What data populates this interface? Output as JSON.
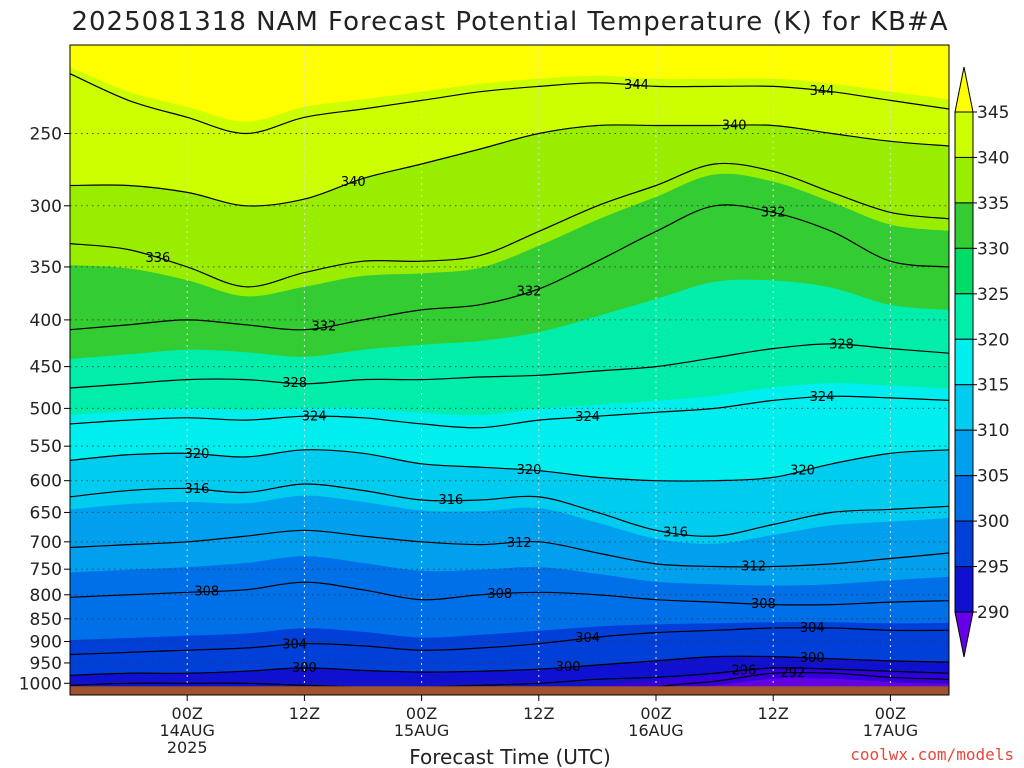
{
  "chart_data": {
    "type": "heatmap",
    "title": "2025081318 NAM Forecast Potential Temperature (K) for KB#A",
    "xlabel": "Forecast Time (UTC)",
    "ylabel": "",
    "y_axis": {
      "scale": "log",
      "reversed": true,
      "units": "hPa",
      "ylim": [
        200,
        1030
      ],
      "ticks": [
        250,
        300,
        350,
        400,
        450,
        500,
        550,
        600,
        650,
        700,
        750,
        800,
        850,
        900,
        950,
        1000
      ]
    },
    "x_axis": {
      "units": "forecast hour",
      "xlim": [
        -6,
        84
      ],
      "ticks": [
        {
          "hour": 6,
          "line1": "00Z",
          "line2": "14AUG",
          "line3": "2025"
        },
        {
          "hour": 18,
          "line1": "12Z",
          "line2": "",
          "line3": ""
        },
        {
          "hour": 30,
          "line1": "00Z",
          "line2": "15AUG",
          "line3": ""
        },
        {
          "hour": 42,
          "line1": "12Z",
          "line2": "",
          "line3": ""
        },
        {
          "hour": 54,
          "line1": "00Z",
          "line2": "16AUG",
          "line3": ""
        },
        {
          "hour": 66,
          "line1": "12Z",
          "line2": "",
          "line3": ""
        },
        {
          "hour": 78,
          "line1": "00Z",
          "line2": "17AUG",
          "line3": ""
        }
      ]
    },
    "grid": true,
    "colorbar": {
      "labels": [
        345,
        340,
        335,
        330,
        325,
        320,
        315,
        310,
        305,
        300,
        295,
        290
      ],
      "colors": [
        "#ffff00",
        "#ccff00",
        "#99ee00",
        "#33cc33",
        "#00dd66",
        "#00eeaa",
        "#00eeee",
        "#00ccf0",
        "#00a0ee",
        "#0070e8",
        "#0040d8",
        "#1010d0",
        "#3300dd",
        "#6600e8"
      ]
    },
    "bands": [
      {
        "theta": "<290",
        "color": "#6600e8"
      },
      {
        "theta": "290-295",
        "color": "#3300dd"
      },
      {
        "theta": "295-300",
        "color": "#1010d0"
      },
      {
        "theta": "300-305",
        "color": "#0040d8"
      },
      {
        "theta": "305-310",
        "color": "#0070e8"
      },
      {
        "theta": "310-315",
        "color": "#00a0ee"
      },
      {
        "theta": "315-320",
        "color": "#00ccf0"
      },
      {
        "theta": "320-325",
        "color": "#00eeee"
      },
      {
        "theta": "325-330",
        "color": "#00eeaa"
      },
      {
        "theta": "330-335",
        "color": "#33cc33"
      },
      {
        "theta": "335-340",
        "color": "#99ee00"
      },
      {
        "theta": "340-345",
        "color": "#ccff00"
      },
      {
        "theta": ">345",
        "color": "#ffff00"
      }
    ],
    "ground_color": "#a0522d",
    "hours": [
      -6,
      0,
      6,
      12,
      18,
      24,
      30,
      36,
      42,
      48,
      54,
      60,
      66,
      72,
      78,
      84
    ],
    "contours": [
      {
        "theta": 292,
        "pressure": [
          null,
          null,
          null,
          null,
          null,
          null,
          null,
          null,
          null,
          null,
          1010,
          995,
          975,
          975,
          985,
          990
        ],
        "label": {
          "hour": 68,
          "text": "292"
        }
      },
      {
        "theta": 296,
        "pressure": [
          1005,
          1000,
          1000,
          1000,
          1005,
          1010,
          1010,
          1005,
          1000,
          990,
          985,
          975,
          962,
          965,
          970,
          975
        ],
        "label": {
          "hour": 63,
          "text": "296"
        }
      },
      {
        "theta": 300,
        "pressure": [
          980,
          975,
          975,
          970,
          962,
          968,
          972,
          970,
          965,
          955,
          945,
          935,
          935,
          940,
          945,
          948
        ],
        "label": {
          "hour": 18,
          "text": "300"
        }
      },
      {
        "theta": 300,
        "pressure": null,
        "label": {
          "hour": 45,
          "text": "300"
        }
      },
      {
        "theta": 300,
        "pressure": null,
        "label": {
          "hour": 70,
          "text": "300"
        }
      },
      {
        "theta": 304,
        "pressure": [
          930,
          925,
          920,
          915,
          905,
          910,
          920,
          915,
          905,
          890,
          880,
          875,
          870,
          870,
          875,
          875
        ],
        "label": {
          "hour": 17,
          "text": "304"
        }
      },
      {
        "theta": 304,
        "pressure": null,
        "label": {
          "hour": 47,
          "text": "304"
        }
      },
      {
        "theta": 304,
        "pressure": null,
        "label": {
          "hour": 70,
          "text": "304"
        }
      },
      {
        "theta": 308,
        "pressure": [
          805,
          800,
          795,
          790,
          775,
          790,
          810,
          800,
          795,
          800,
          810,
          815,
          820,
          820,
          815,
          812
        ],
        "label": {
          "hour": 8,
          "text": "308"
        }
      },
      {
        "theta": 308,
        "pressure": null,
        "label": {
          "hour": 38,
          "text": "308"
        }
      },
      {
        "theta": 308,
        "pressure": null,
        "label": {
          "hour": 65,
          "text": "308"
        }
      },
      {
        "theta": 312,
        "pressure": [
          710,
          705,
          700,
          690,
          680,
          690,
          700,
          705,
          700,
          720,
          740,
          745,
          745,
          740,
          730,
          720
        ],
        "label": {
          "hour": 40,
          "text": "312"
        }
      },
      {
        "theta": 312,
        "pressure": null,
        "label": {
          "hour": 64,
          "text": "312"
        }
      },
      {
        "theta": 316,
        "pressure": [
          625,
          615,
          612,
          618,
          605,
          615,
          630,
          630,
          625,
          650,
          680,
          690,
          670,
          650,
          645,
          640
        ],
        "label": {
          "hour": 7,
          "text": "316"
        }
      },
      {
        "theta": 316,
        "pressure": null,
        "label": {
          "hour": 33,
          "text": "316"
        }
      },
      {
        "theta": 316,
        "pressure": null,
        "label": {
          "hour": 56,
          "text": "316"
        }
      },
      {
        "theta": 320,
        "pressure": [
          570,
          562,
          560,
          565,
          555,
          560,
          575,
          580,
          585,
          595,
          600,
          600,
          595,
          575,
          560,
          555
        ],
        "label": {
          "hour": 7,
          "text": "320"
        }
      },
      {
        "theta": 320,
        "pressure": null,
        "label": {
          "hour": 41,
          "text": "320"
        }
      },
      {
        "theta": 320,
        "pressure": null,
        "label": {
          "hour": 69,
          "text": "320"
        }
      },
      {
        "theta": 324,
        "pressure": [
          520,
          515,
          512,
          515,
          510,
          512,
          520,
          525,
          515,
          510,
          505,
          500,
          490,
          485,
          487,
          490
        ],
        "label": {
          "hour": 19,
          "text": "324"
        }
      },
      {
        "theta": 324,
        "pressure": null,
        "label": {
          "hour": 47,
          "text": "324"
        }
      },
      {
        "theta": 324,
        "pressure": null,
        "label": {
          "hour": 71,
          "text": "324"
        }
      },
      {
        "theta": 328,
        "pressure": [
          475,
          470,
          465,
          465,
          470,
          465,
          465,
          462,
          460,
          455,
          450,
          440,
          430,
          425,
          430,
          435
        ],
        "label": {
          "hour": 17,
          "text": "328"
        }
      },
      {
        "theta": 328,
        "pressure": null,
        "label": {
          "hour": 73,
          "text": "328"
        }
      },
      {
        "theta": 332,
        "pressure": [
          410,
          405,
          400,
          405,
          410,
          400,
          390,
          385,
          370,
          345,
          320,
          300,
          305,
          320,
          345,
          350
        ],
        "label": {
          "hour": 20,
          "text": "332"
        }
      },
      {
        "theta": 332,
        "pressure": null,
        "label": {
          "hour": 41,
          "text": "332"
        }
      },
      {
        "theta": 332,
        "pressure": null,
        "label": {
          "hour": 66,
          "text": "332"
        }
      },
      {
        "theta": 336,
        "pressure": [
          330,
          335,
          350,
          368,
          355,
          345,
          345,
          340,
          320,
          300,
          285,
          270,
          275,
          290,
          305,
          310
        ],
        "label": {
          "hour": 3,
          "text": "336"
        }
      },
      {
        "theta": 340,
        "pressure": [
          285,
          285,
          290,
          300,
          295,
          280,
          270,
          260,
          250,
          245,
          245,
          245,
          245,
          250,
          255,
          258
        ],
        "label": {
          "hour": 23,
          "text": "340"
        }
      },
      {
        "theta": 340,
        "pressure": null,
        "label": {
          "hour": 62,
          "text": "340"
        }
      },
      {
        "theta": 344,
        "pressure": [
          215,
          230,
          240,
          250,
          240,
          235,
          230,
          225,
          222,
          220,
          222,
          222,
          222,
          225,
          230,
          235
        ],
        "label": {
          "hour": 52,
          "text": "344"
        }
      },
      {
        "theta": 344,
        "pressure": null,
        "label": {
          "hour": 71,
          "text": "344"
        }
      }
    ]
  },
  "watermark": "coolwx.com/models"
}
